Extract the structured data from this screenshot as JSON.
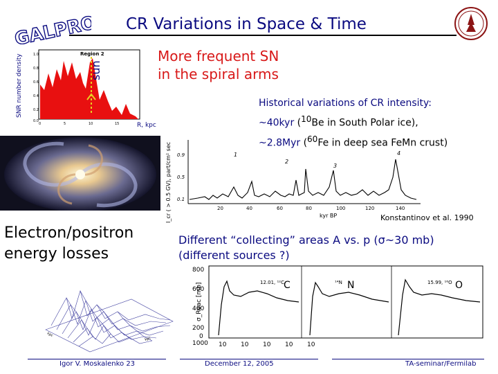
{
  "slide": {
    "logo_text": "GALPROP",
    "title": "CR Variations in Space & Time"
  },
  "snr_plot": {
    "ylabel": "SNR number density",
    "region": "Region 2",
    "sun_label": "sun",
    "xlabel": "R, kpc",
    "yticks": [
      "1.0",
      "0.8",
      "0.6",
      "0.4",
      "0.2",
      "0.0"
    ],
    "xticks": [
      "0",
      "5",
      "10",
      "15"
    ]
  },
  "sn_text": {
    "line1": "More frequent SN",
    "line2": "in the spiral arms"
  },
  "electron_text": {
    "line1": "Electron/positron",
    "line2": "energy losses"
  },
  "historical": {
    "heading": "Historical variations of CR intensity:",
    "l2_main": "~40kyr",
    "l2_paren_open": " (",
    "l2_sup": "10",
    "l2_rest": "Be in South Polar ice),",
    "l3_main": "~2.8Myr",
    "l3_paren_open": " (",
    "l3_sup": "60",
    "l3_rest": "Fe in deep sea FeMn crust)"
  },
  "cr_plot": {
    "ylabel": "I_cr ( > 0.5 GV), part/cm² sec",
    "xlabel": "kyr BP",
    "yticks": [
      "0.9",
      "0.5",
      "0.1"
    ],
    "xticks": [
      "20",
      "40",
      "60",
      "80",
      "100",
      "120",
      "140"
    ],
    "peaks": [
      "1",
      "2",
      "3",
      "4"
    ],
    "citation": "Konstantinov et al. 1990"
  },
  "diff_text": {
    "line1": "Different “collecting” areas A vs. p (σ~30 mb)",
    "line2": "(different sources ?)"
  },
  "xs_plot": {
    "yticks": [
      "800",
      "600",
      "400",
      "200",
      "0",
      "1000"
    ],
    "ylabel": "σ_Reac [mb]",
    "panels": [
      {
        "tag": "12.01, ¹²C",
        "label": "C"
      },
      {
        "tag": "¹⁴N",
        "label": "N"
      },
      {
        "tag": "15.99, ¹⁶O",
        "label": "O"
      }
    ],
    "xticks": [
      "10",
      "10",
      "10",
      "10",
      "10"
    ]
  },
  "footer": {
    "author": "Igor V. Moskalenko 23",
    "date": "December 12, 2005",
    "venue": "TA-seminar/Fermilab"
  }
}
